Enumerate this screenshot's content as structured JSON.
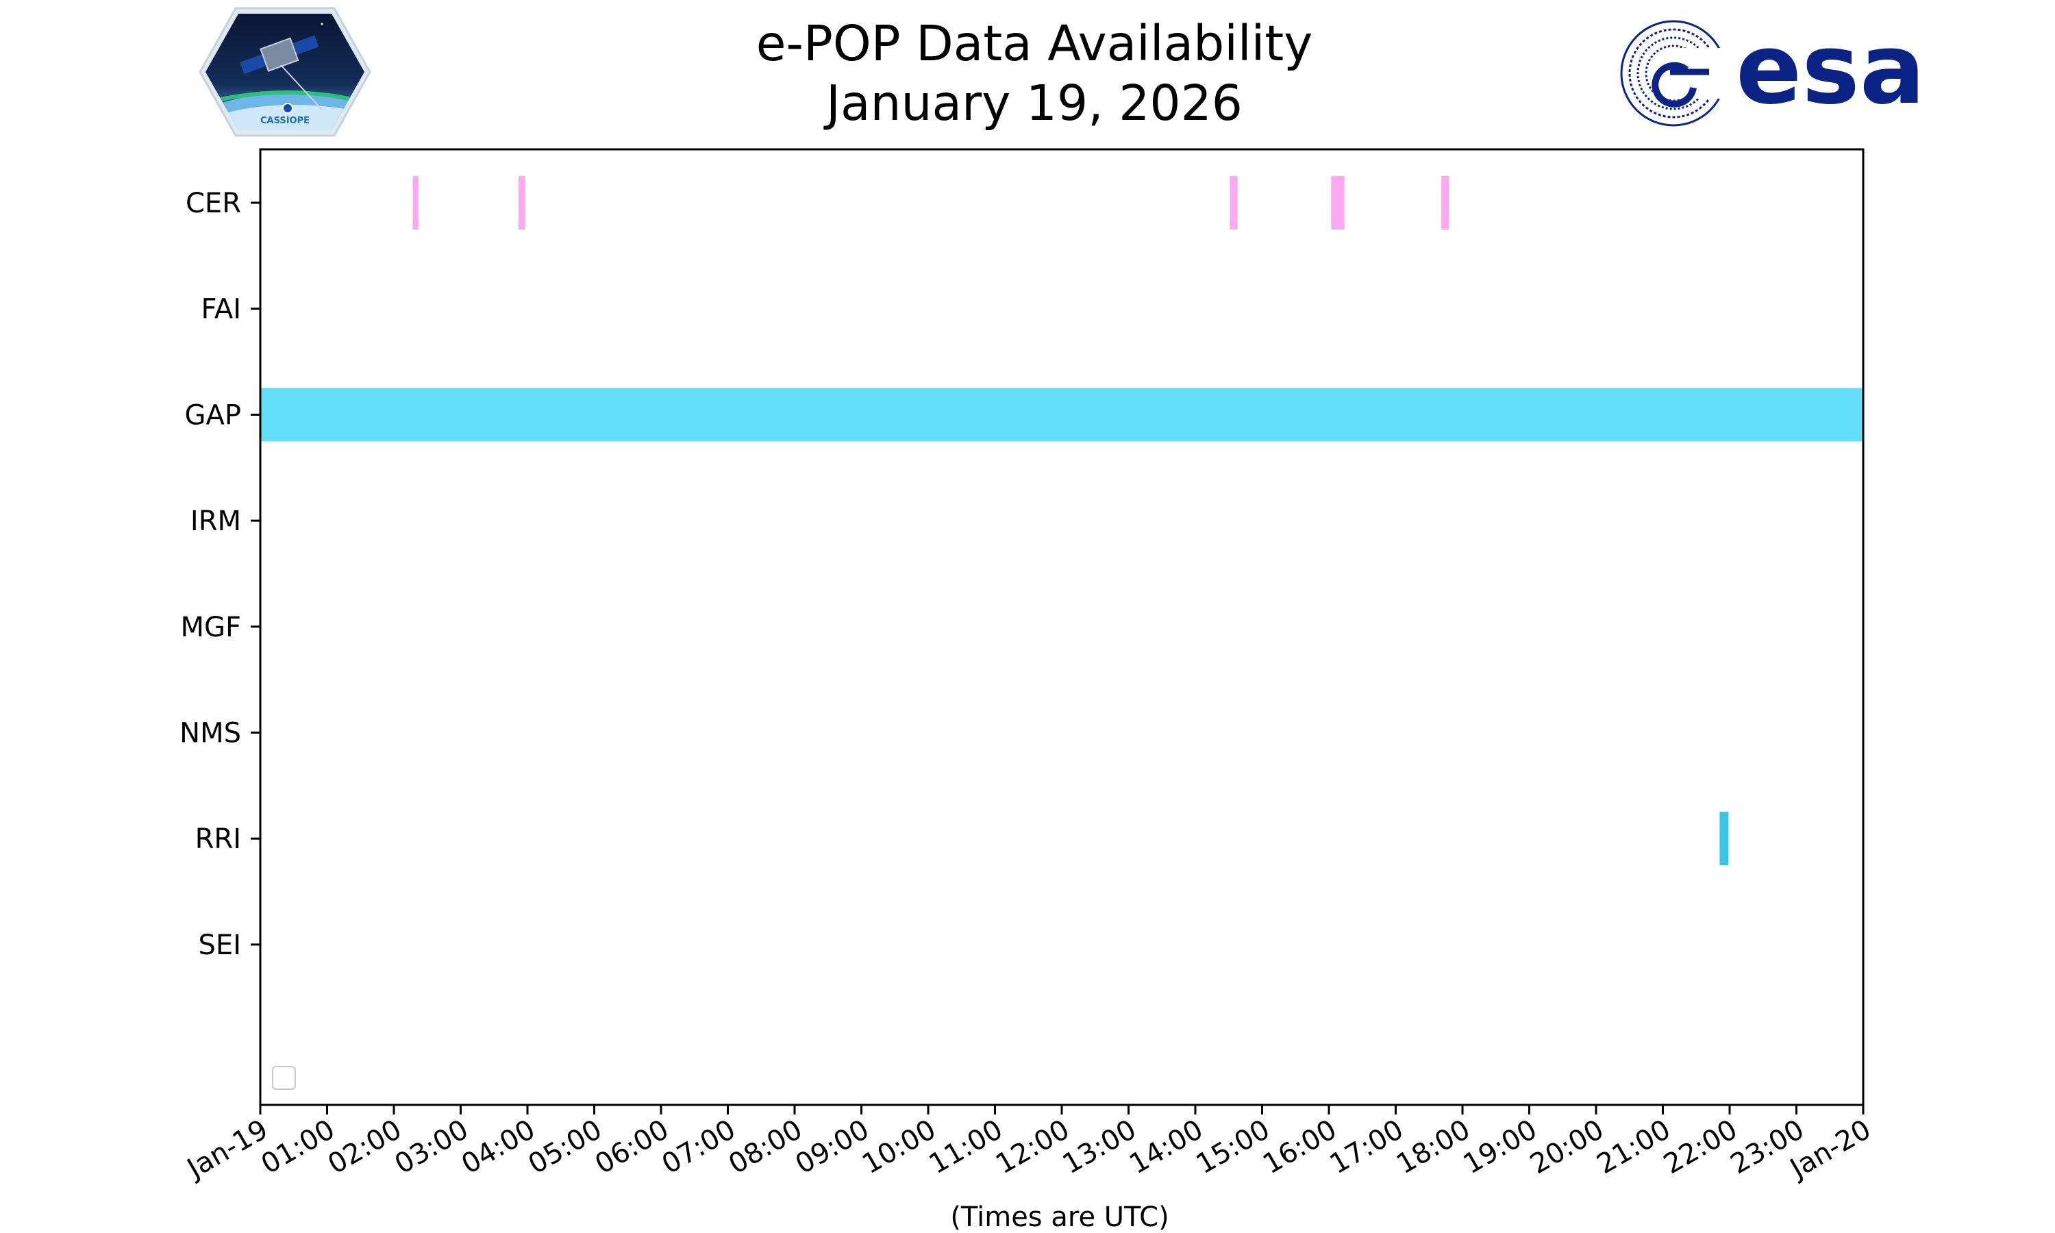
{
  "chart_data": {
    "type": "timeline",
    "title": "e-POP Data Availability",
    "subtitle": "January 19, 2026",
    "xlabel": "(Times are UTC)",
    "ylabel": "",
    "x_ticks": [
      "Jan-19",
      "01:00",
      "02:00",
      "03:00",
      "04:00",
      "05:00",
      "06:00",
      "07:00",
      "08:00",
      "09:00",
      "10:00",
      "11:00",
      "12:00",
      "13:00",
      "14:00",
      "15:00",
      "16:00",
      "17:00",
      "18:00",
      "19:00",
      "20:00",
      "21:00",
      "22:00",
      "23:00",
      "Jan-20"
    ],
    "xlim_hours": [
      0,
      24
    ],
    "categories": [
      "CER",
      "FAI",
      "GAP",
      "IRM",
      "MGF",
      "NMS",
      "RRI",
      "SEI"
    ],
    "grid": false,
    "legend": {
      "placement": "bottom-left",
      "entries": []
    },
    "intervals": [
      {
        "category": "CER",
        "start": "02:17",
        "end": "02:22",
        "color": "#fbaaf0"
      },
      {
        "category": "CER",
        "start": "03:52",
        "end": "03:58",
        "color": "#fbaaf0"
      },
      {
        "category": "CER",
        "start": "14:31",
        "end": "14:38",
        "color": "#fbaaf0"
      },
      {
        "category": "CER",
        "start": "16:02",
        "end": "16:14",
        "color": "#fbaaf0"
      },
      {
        "category": "CER",
        "start": "17:41",
        "end": "17:48",
        "color": "#fbaaf0"
      },
      {
        "category": "GAP",
        "start": "00:00",
        "end": "24:00",
        "color": "#63def8"
      },
      {
        "category": "RRI",
        "start": "21:51",
        "end": "21:59",
        "color": "#39c6e6"
      }
    ]
  },
  "logos": {
    "left": {
      "name": "cassiope-mission-logo",
      "text": "CASSIOPE"
    },
    "right": {
      "name": "esa-logo",
      "text": "esa",
      "color": "#0b2384"
    }
  }
}
